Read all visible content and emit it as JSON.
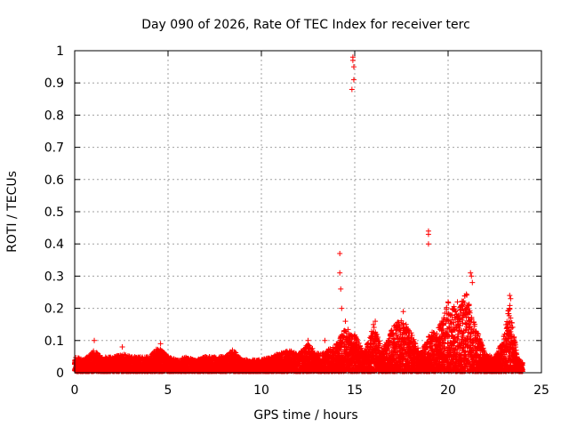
{
  "chart_data": {
    "type": "scatter",
    "title": "Day 090 of 2026, Rate Of TEC Index for receiver terc",
    "xlabel": "GPS time / hours",
    "ylabel": "ROTI / TECUs",
    "xlim": [
      0,
      25
    ],
    "ylim": [
      0,
      1
    ],
    "grid": true,
    "marker": "+",
    "color": "#ff0000",
    "x_ticks": [
      "0",
      "5",
      "10",
      "15",
      "20",
      "25"
    ],
    "y_ticks": [
      "0",
      "0.1",
      "0.2",
      "0.3",
      "0.4",
      "0.5",
      "0.6",
      "0.7",
      "0.8",
      "0.9",
      "1"
    ],
    "series": [
      {
        "name": "ROTI",
        "description": "dense band of points, mostly 0 to 0.05 TECU/min, with spikes",
        "baseline_envelope": [
          [
            0.0,
            0.05
          ],
          [
            0.5,
            0.04
          ],
          [
            1.0,
            0.07
          ],
          [
            1.5,
            0.05
          ],
          [
            2.0,
            0.05
          ],
          [
            2.5,
            0.06
          ],
          [
            3.0,
            0.05
          ],
          [
            3.5,
            0.05
          ],
          [
            4.0,
            0.05
          ],
          [
            4.5,
            0.08
          ],
          [
            5.0,
            0.05
          ],
          [
            5.5,
            0.04
          ],
          [
            6.0,
            0.05
          ],
          [
            6.5,
            0.04
          ],
          [
            7.0,
            0.05
          ],
          [
            7.5,
            0.05
          ],
          [
            8.0,
            0.05
          ],
          [
            8.5,
            0.07
          ],
          [
            9.0,
            0.04
          ],
          [
            9.5,
            0.04
          ],
          [
            10.0,
            0.04
          ],
          [
            10.5,
            0.05
          ],
          [
            11.0,
            0.06
          ],
          [
            11.5,
            0.07
          ],
          [
            12.0,
            0.06
          ],
          [
            12.5,
            0.09
          ],
          [
            13.0,
            0.06
          ],
          [
            13.5,
            0.07
          ],
          [
            14.0,
            0.09
          ],
          [
            14.5,
            0.14
          ],
          [
            15.0,
            0.12
          ],
          [
            15.5,
            0.06
          ],
          [
            16.0,
            0.15
          ],
          [
            16.5,
            0.07
          ],
          [
            17.0,
            0.14
          ],
          [
            17.5,
            0.17
          ],
          [
            18.0,
            0.13
          ],
          [
            18.5,
            0.06
          ],
          [
            19.0,
            0.12
          ],
          [
            19.5,
            0.14
          ],
          [
            20.0,
            0.22
          ],
          [
            20.5,
            0.2
          ],
          [
            21.0,
            0.25
          ],
          [
            21.5,
            0.14
          ],
          [
            22.0,
            0.06
          ],
          [
            22.5,
            0.05
          ],
          [
            23.0,
            0.12
          ],
          [
            23.3,
            0.22
          ],
          [
            23.7,
            0.05
          ],
          [
            24.0,
            0.03
          ]
        ],
        "outliers": [
          [
            14.9,
            0.98
          ],
          [
            14.9,
            0.97
          ],
          [
            14.95,
            0.95
          ],
          [
            14.95,
            0.91
          ],
          [
            14.85,
            0.88
          ],
          [
            14.2,
            0.37
          ],
          [
            14.2,
            0.31
          ],
          [
            14.25,
            0.26
          ],
          [
            14.3,
            0.2
          ],
          [
            14.5,
            0.16
          ],
          [
            18.95,
            0.44
          ],
          [
            18.95,
            0.43
          ],
          [
            18.95,
            0.4
          ],
          [
            21.2,
            0.31
          ],
          [
            21.25,
            0.3
          ],
          [
            21.3,
            0.28
          ],
          [
            20.0,
            0.22
          ],
          [
            20.5,
            0.22
          ],
          [
            23.3,
            0.24
          ],
          [
            23.35,
            0.23
          ],
          [
            23.3,
            0.2
          ],
          [
            23.35,
            0.17
          ],
          [
            16.1,
            0.16
          ],
          [
            17.6,
            0.19
          ],
          [
            17.9,
            0.13
          ],
          [
            16.9,
            0.12
          ],
          [
            1.05,
            0.1
          ],
          [
            2.55,
            0.08
          ],
          [
            4.6,
            0.09
          ],
          [
            8.45,
            0.07
          ],
          [
            12.5,
            0.1
          ],
          [
            13.4,
            0.1
          ]
        ]
      }
    ]
  }
}
